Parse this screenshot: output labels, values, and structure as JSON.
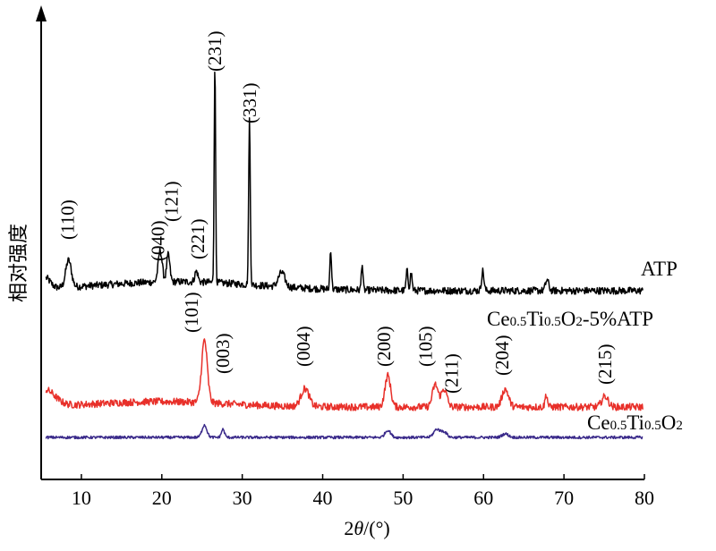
{
  "chart_data": {
    "type": "line",
    "xlabel": "2θ/(°)",
    "ylabel": "相对强度",
    "xlim": [
      5,
      80
    ],
    "xticks": [
      10,
      20,
      30,
      40,
      50,
      60,
      70,
      80
    ],
    "yticks_shown": false,
    "series": [
      {
        "name": "ATP",
        "color": "#000000",
        "baseline": 325,
        "peaks": [
          {
            "x": 5.5,
            "h": 12,
            "w": 0.6
          },
          {
            "x": 8.4,
            "h": 30,
            "w": 0.35
          },
          {
            "x": 19.8,
            "h": 35,
            "w": 0.25
          },
          {
            "x": 20.8,
            "h": 30,
            "w": 0.2
          },
          {
            "x": 24.3,
            "h": 12,
            "w": 0.2
          },
          {
            "x": 26.6,
            "h": 245,
            "w": 0.09
          },
          {
            "x": 30.9,
            "h": 185,
            "w": 0.1
          },
          {
            "x": 34.9,
            "h": 16,
            "w": 0.4
          },
          {
            "x": 41.0,
            "h": 45,
            "w": 0.1
          },
          {
            "x": 44.9,
            "h": 30,
            "w": 0.1
          },
          {
            "x": 50.5,
            "h": 22,
            "w": 0.12
          },
          {
            "x": 51.0,
            "h": 20,
            "w": 0.12
          },
          {
            "x": 59.9,
            "h": 22,
            "w": 0.15
          },
          {
            "x": 67.9,
            "h": 12,
            "w": 0.2
          }
        ]
      },
      {
        "name": "Ce0.5Ti0.5O2-5%ATP",
        "color": "#e8302a",
        "baseline": 455,
        "peaks": [
          {
            "x": 5.5,
            "h": 18,
            "w": 1.2
          },
          {
            "x": 25.3,
            "h": 70,
            "w": 0.35
          },
          {
            "x": 37.8,
            "h": 20,
            "w": 0.5
          },
          {
            "x": 48.1,
            "h": 35,
            "w": 0.35
          },
          {
            "x": 54.0,
            "h": 25,
            "w": 0.35
          },
          {
            "x": 55.1,
            "h": 20,
            "w": 0.35
          },
          {
            "x": 62.7,
            "h": 20,
            "w": 0.4
          },
          {
            "x": 67.8,
            "h": 14,
            "w": 0.15
          },
          {
            "x": 75.1,
            "h": 12,
            "w": 0.4
          }
        ]
      },
      {
        "name": "Ce0.5Ti0.5O2",
        "color": "#3a2a8a",
        "baseline": 489,
        "peaks": [
          {
            "x": 25.3,
            "h": 14,
            "w": 0.3
          },
          {
            "x": 27.6,
            "h": 9,
            "w": 0.2
          },
          {
            "x": 48.1,
            "h": 8,
            "w": 0.35
          },
          {
            "x": 54.2,
            "h": 9,
            "w": 0.4
          },
          {
            "x": 55.1,
            "h": 6,
            "w": 0.35
          },
          {
            "x": 62.7,
            "h": 4,
            "w": 0.4
          }
        ]
      }
    ],
    "annotations": [
      {
        "text": "(110)",
        "x": 8.3
      },
      {
        "text": "(040)",
        "x": 19.5
      },
      {
        "text": "(121)",
        "x": 21.2
      },
      {
        "text": "(221)",
        "x": 24.5
      },
      {
        "text": "(231)",
        "x": 26.6
      },
      {
        "text": "(331)",
        "x": 30.9
      },
      {
        "text": "(101)",
        "x": 23.7
      },
      {
        "text": "(003)",
        "x": 27.6
      },
      {
        "text": "(004)",
        "x": 37.6
      },
      {
        "text": "(200)",
        "x": 47.6
      },
      {
        "text": "(105)",
        "x": 52.8
      },
      {
        "text": "(211)",
        "x": 56.0
      },
      {
        "text": "(204)",
        "x": 62.3
      },
      {
        "text": "(215)",
        "x": 75.1
      }
    ],
    "series_labels": {
      "atp": "ATP",
      "composite": {
        "base": "Ce",
        "s1": "0.5",
        "mid": "Ti",
        "s2": "0.5",
        "o": "O",
        "s3": "2",
        "suffix": "-5%ATP"
      },
      "pure": {
        "base": "Ce",
        "s1": "0.5",
        "mid": "Ti",
        "s2": "0.5",
        "o": "O",
        "s3": "2"
      }
    }
  }
}
